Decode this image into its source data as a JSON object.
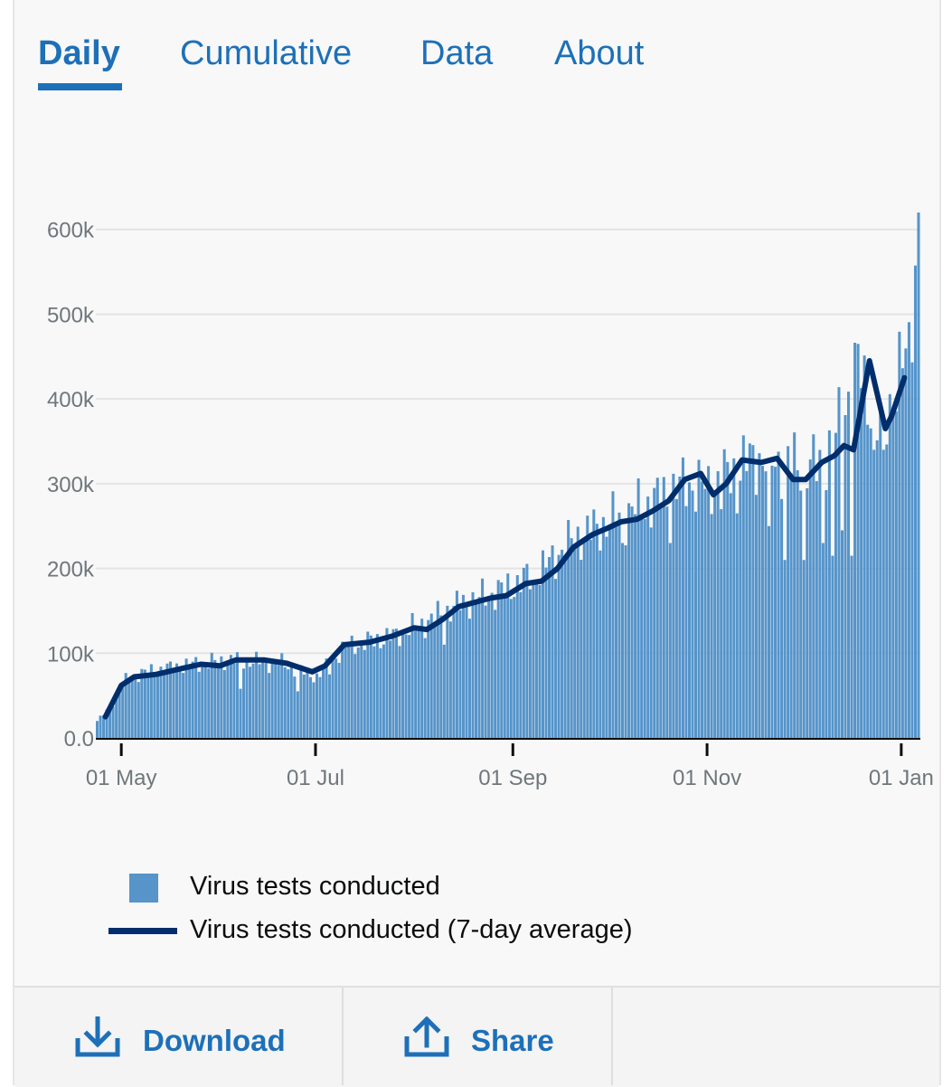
{
  "tabs": [
    {
      "label": "Daily",
      "active": true
    },
    {
      "label": "Cumulative",
      "active": false
    },
    {
      "label": "Data",
      "active": false
    },
    {
      "label": "About",
      "active": false
    }
  ],
  "legend": {
    "bar_label": "Virus tests conducted",
    "line_label": "Virus tests conducted (7-day average)"
  },
  "footer": {
    "download_label": "Download",
    "share_label": "Share",
    "download_icon": "download-icon",
    "share_icon": "share-icon"
  },
  "colors": {
    "accent": "#1d70b8",
    "bar": "#5694ca",
    "line": "#002d6b"
  },
  "chart_data": {
    "type": "bar",
    "x_start": "2020-04-23",
    "x_end": "2021-01-07",
    "ylim": [
      0,
      620000
    ],
    "grid": true,
    "y_ticks": [
      {
        "value": 0,
        "label": "0.0"
      },
      {
        "value": 100000,
        "label": "100k"
      },
      {
        "value": 200000,
        "label": "200k"
      },
      {
        "value": 300000,
        "label": "300k"
      },
      {
        "value": 400000,
        "label": "400k"
      },
      {
        "value": 500000,
        "label": "500k"
      },
      {
        "value": 600000,
        "label": "600k"
      }
    ],
    "x_ticks": [
      {
        "date": "2020-05-01",
        "label": "01 May"
      },
      {
        "date": "2020-07-01",
        "label": "01 Jul"
      },
      {
        "date": "2020-09-01",
        "label": "01 Sep"
      },
      {
        "date": "2020-11-01",
        "label": "01 Nov"
      },
      {
        "date": "2021-01-01",
        "label": "01 Jan"
      }
    ],
    "series": [
      {
        "name": "Virus tests conducted",
        "type": "bar",
        "anchors": [
          [
            "2020-04-23",
            20000
          ],
          [
            "2020-04-27",
            35000
          ],
          [
            "2020-05-01",
            65000
          ],
          [
            "2020-05-05",
            75000
          ],
          [
            "2020-05-15",
            82000
          ],
          [
            "2020-05-25",
            88000
          ],
          [
            "2020-06-05",
            92000
          ],
          [
            "2020-06-20",
            88000
          ],
          [
            "2020-07-01",
            72000
          ],
          [
            "2020-07-10",
            108000
          ],
          [
            "2020-07-25",
            120000
          ],
          [
            "2020-08-05",
            138000
          ],
          [
            "2020-08-15",
            158000
          ],
          [
            "2020-08-25",
            170000
          ],
          [
            "2020-09-01",
            180000
          ],
          [
            "2020-09-10",
            200000
          ],
          [
            "2020-09-20",
            235000
          ],
          [
            "2020-10-01",
            255000
          ],
          [
            "2020-10-15",
            280000
          ],
          [
            "2020-10-25",
            300000
          ],
          [
            "2020-11-01",
            295000
          ],
          [
            "2020-11-15",
            330000
          ],
          [
            "2020-11-25",
            325000
          ],
          [
            "2020-12-05",
            320000
          ],
          [
            "2020-12-10",
            345000
          ],
          [
            "2020-12-18",
            440000
          ],
          [
            "2020-12-25",
            360000
          ],
          [
            "2021-01-01",
            440000
          ],
          [
            "2021-01-03",
            460000
          ],
          [
            "2021-01-05",
            560000
          ],
          [
            "2021-01-06",
            620000
          ]
        ],
        "dips": [
          [
            "2020-06-07",
            58000
          ],
          [
            "2020-06-25",
            55000
          ],
          [
            "2020-07-05",
            75000
          ],
          [
            "2020-08-10",
            110000
          ],
          [
            "2020-09-07",
            185000
          ],
          [
            "2020-10-05",
            230000
          ],
          [
            "2020-10-20",
            230000
          ],
          [
            "2020-11-05",
            270000
          ],
          [
            "2020-11-10",
            265000
          ],
          [
            "2020-11-20",
            250000
          ],
          [
            "2020-11-25",
            210000
          ],
          [
            "2020-12-01",
            210000
          ],
          [
            "2020-12-07",
            230000
          ],
          [
            "2020-12-10",
            215000
          ],
          [
            "2020-12-13",
            245000
          ],
          [
            "2020-12-16",
            215000
          ],
          [
            "2020-12-23",
            340000
          ],
          [
            "2020-12-26",
            340000
          ]
        ]
      },
      {
        "name": "Virus tests conducted (7-day average)",
        "type": "line",
        "values": [
          [
            "2020-04-26",
            25000
          ],
          [
            "2020-05-01",
            62000
          ],
          [
            "2020-05-05",
            72000
          ],
          [
            "2020-05-12",
            75000
          ],
          [
            "2020-05-20",
            82000
          ],
          [
            "2020-05-26",
            87000
          ],
          [
            "2020-06-01",
            85000
          ],
          [
            "2020-06-06",
            92000
          ],
          [
            "2020-06-15",
            92000
          ],
          [
            "2020-06-22",
            88000
          ],
          [
            "2020-06-30",
            78000
          ],
          [
            "2020-07-04",
            85000
          ],
          [
            "2020-07-10",
            110000
          ],
          [
            "2020-07-18",
            113000
          ],
          [
            "2020-07-25",
            120000
          ],
          [
            "2020-08-01",
            130000
          ],
          [
            "2020-08-05",
            128000
          ],
          [
            "2020-08-10",
            140000
          ],
          [
            "2020-08-15",
            155000
          ],
          [
            "2020-08-20",
            160000
          ],
          [
            "2020-08-25",
            165000
          ],
          [
            "2020-08-30",
            168000
          ],
          [
            "2020-09-05",
            182000
          ],
          [
            "2020-09-10",
            185000
          ],
          [
            "2020-09-15",
            200000
          ],
          [
            "2020-09-20",
            225000
          ],
          [
            "2020-09-26",
            240000
          ],
          [
            "2020-10-01",
            248000
          ],
          [
            "2020-10-05",
            255000
          ],
          [
            "2020-10-10",
            258000
          ],
          [
            "2020-10-15",
            268000
          ],
          [
            "2020-10-20",
            280000
          ],
          [
            "2020-10-25",
            305000
          ],
          [
            "2020-10-30",
            312000
          ],
          [
            "2020-11-03",
            287000
          ],
          [
            "2020-11-07",
            300000
          ],
          [
            "2020-11-12",
            328000
          ],
          [
            "2020-11-18",
            325000
          ],
          [
            "2020-11-23",
            330000
          ],
          [
            "2020-11-28",
            305000
          ],
          [
            "2020-12-02",
            305000
          ],
          [
            "2020-12-07",
            325000
          ],
          [
            "2020-12-11",
            333000
          ],
          [
            "2020-12-14",
            345000
          ],
          [
            "2020-12-17",
            340000
          ],
          [
            "2020-12-22",
            445000
          ],
          [
            "2020-12-27",
            365000
          ],
          [
            "2020-12-29",
            380000
          ],
          [
            "2021-01-02",
            425000
          ]
        ]
      }
    ]
  }
}
